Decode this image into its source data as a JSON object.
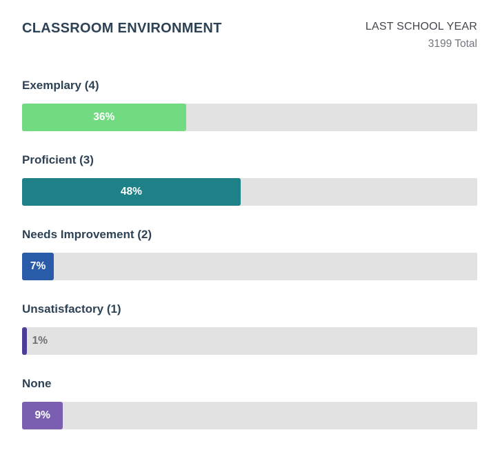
{
  "header": {
    "title": "CLASSROOM ENVIRONMENT",
    "period_label": "LAST SCHOOL YEAR",
    "total_label": "3199 Total"
  },
  "chart_data": {
    "type": "bar",
    "orientation": "horizontal",
    "title": "CLASSROOM ENVIRONMENT",
    "period": "LAST SCHOOL YEAR",
    "total": 3199,
    "unit": "%",
    "xlim": [
      0,
      100
    ],
    "grid": false,
    "legend": false,
    "track_color": "#e2e2e3",
    "categories": [
      "Exemplary (4)",
      "Proficient (3)",
      "Needs Improvement (2)",
      "Unsatisfactory (1)",
      "None"
    ],
    "values": [
      36,
      48,
      7,
      1,
      9
    ],
    "bars": [
      {
        "label": "Exemplary (4)",
        "value": 36,
        "display": "36%",
        "color": "#72db82",
        "value_label_position": "inside"
      },
      {
        "label": "Proficient (3)",
        "value": 48,
        "display": "48%",
        "color": "#1e8187",
        "value_label_position": "inside"
      },
      {
        "label": "Needs Improvement (2)",
        "value": 7,
        "display": "7%",
        "color": "#2a5ba8",
        "value_label_position": "inside"
      },
      {
        "label": "Unsatisfactory (1)",
        "value": 1,
        "display": "1%",
        "color": "#4e3d96",
        "value_label_position": "outside"
      },
      {
        "label": "None",
        "value": 9,
        "display": "9%",
        "color": "#7a5fb1",
        "value_label_position": "inside"
      }
    ]
  }
}
